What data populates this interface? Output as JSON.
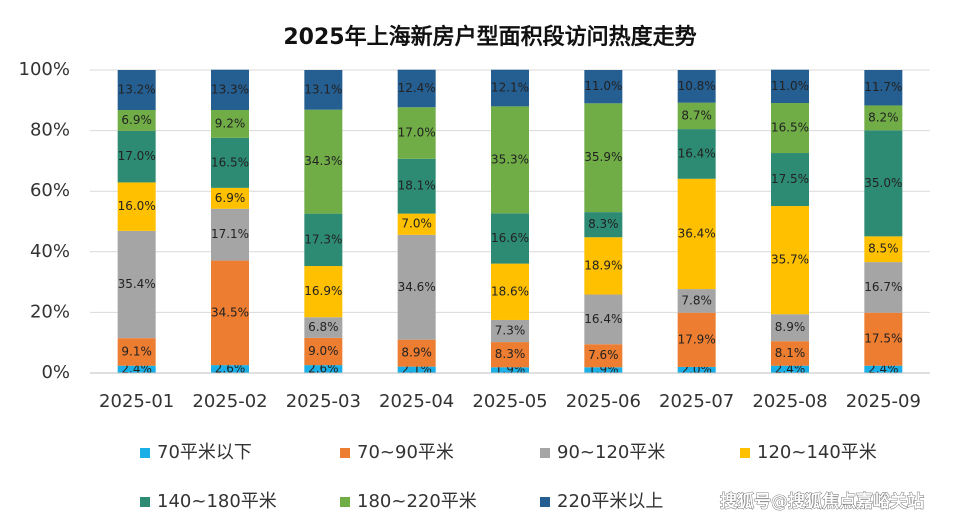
{
  "chart_data": {
    "type": "stacked_bar_100",
    "title": "2025年上海新房户型面积段访问热度走势",
    "watermark": "搜狐号@搜狐焦点嘉峪关站",
    "categories": [
      "2025-01",
      "2025-02",
      "2025-03",
      "2025-04",
      "2025-05",
      "2025-06",
      "2025-07",
      "2025-08",
      "2025-09"
    ],
    "ylim": [
      0,
      100
    ],
    "yticks": [
      {
        "value": 0,
        "label": "0%"
      },
      {
        "value": 20,
        "label": "20%"
      },
      {
        "value": 40,
        "label": "40%"
      },
      {
        "value": 60,
        "label": "60%"
      },
      {
        "value": 80,
        "label": "80%"
      },
      {
        "value": 100,
        "label": "100%"
      }
    ],
    "grid": true,
    "legend": "bottom",
    "series": [
      {
        "name": "70平米以下",
        "color": "#1aafe6",
        "values": [
          2.4,
          2.6,
          2.6,
          2.1,
          1.9,
          1.9,
          2.0,
          2.4,
          2.4
        ],
        "value_labels": [
          "2.4%",
          "2.6%",
          "2.6%",
          "2.1%",
          "1.9%",
          "1.9%",
          "2.0%",
          "2.4%",
          "2.4%"
        ]
      },
      {
        "name": "70~90平米",
        "color": "#ed7d31",
        "values": [
          9.1,
          34.5,
          9.0,
          8.9,
          8.3,
          7.6,
          17.9,
          8.1,
          17.5
        ],
        "value_labels": [
          "9.1%",
          "34.5%",
          "9.0%",
          "8.9%",
          "8.3%",
          "7.6%",
          "17.9%",
          "8.1%",
          "17.5%"
        ]
      },
      {
        "name": "90~120平米",
        "color": "#a5a5a5",
        "values": [
          35.4,
          17.1,
          6.8,
          34.6,
          7.3,
          16.4,
          7.8,
          8.9,
          16.7
        ],
        "value_labels": [
          "35.4%",
          "17.1%",
          "6.8%",
          "34.6%",
          "7.3%",
          "16.4%",
          "7.8%",
          "8.9%",
          "16.7%"
        ]
      },
      {
        "name": "120~140平米",
        "color": "#ffc000",
        "values": [
          16.0,
          6.9,
          16.9,
          7.0,
          18.6,
          18.9,
          36.4,
          35.7,
          8.5
        ],
        "value_labels": [
          "16.0%",
          "6.9%",
          "16.9%",
          "7.0%",
          "18.6%",
          "18.9%",
          "36.4%",
          "35.7%",
          "8.5%"
        ]
      },
      {
        "name": "140~180平米",
        "color": "#2e8b73",
        "values": [
          17.0,
          16.5,
          17.3,
          18.1,
          16.6,
          8.3,
          16.4,
          17.5,
          35.0
        ],
        "value_labels": [
          "17.0%",
          "16.5%",
          "17.3%",
          "18.1%",
          "16.6%",
          "8.3%",
          "16.4%",
          "17.5%",
          "35.0%"
        ]
      },
      {
        "name": "180~220平米",
        "color": "#70ad47",
        "values": [
          6.9,
          9.2,
          34.3,
          17.0,
          35.3,
          35.9,
          8.7,
          16.5,
          8.2
        ],
        "value_labels": [
          "6.9%",
          "9.2%",
          "34.3%",
          "17.0%",
          "35.3%",
          "35.9%",
          "8.7%",
          "16.5%",
          "8.2%"
        ]
      },
      {
        "name": "220平米以上",
        "color": "#255e91",
        "values": [
          13.2,
          13.3,
          13.1,
          12.4,
          12.1,
          11.0,
          10.8,
          11.0,
          11.7
        ],
        "value_labels": [
          "13.2%",
          "13.3%",
          "13.1%",
          "12.4%",
          "12.1%",
          "11.0%",
          "10.8%",
          "11.0%",
          "11.7%"
        ]
      }
    ]
  }
}
